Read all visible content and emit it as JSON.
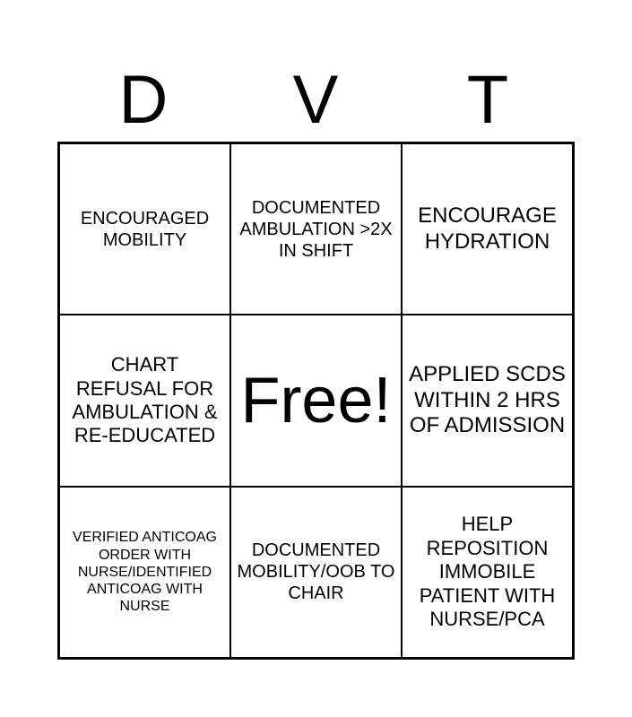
{
  "header": [
    "D",
    "V",
    "T"
  ],
  "cells": [
    {
      "text": "ENCOURAGED MOBILITY",
      "size": 20
    },
    {
      "text": "DOCUMENTED AMBULATION >2X IN SHIFT",
      "size": 20
    },
    {
      "text": "ENCOURAGE HYDRATION",
      "size": 24
    },
    {
      "text": "CHART REFUSAL FOR AMBULATION & RE-EDUCATED",
      "size": 22
    },
    {
      "text": "Free!",
      "size": 72
    },
    {
      "text": "APPLIED SCDS WITHIN 2 HRS OF ADMISSION",
      "size": 24
    },
    {
      "text": "VERIFIED ANTICOAG ORDER WITH NURSE/IDENTIFIED ANTICOAG WITH NURSE",
      "size": 16
    },
    {
      "text": "DOCUMENTED MOBILITY/OOB TO CHAIR",
      "size": 20
    },
    {
      "text": "HELP REPOSITION IMMOBILE PATIENT WITH NURSE/PCA",
      "size": 22
    }
  ]
}
